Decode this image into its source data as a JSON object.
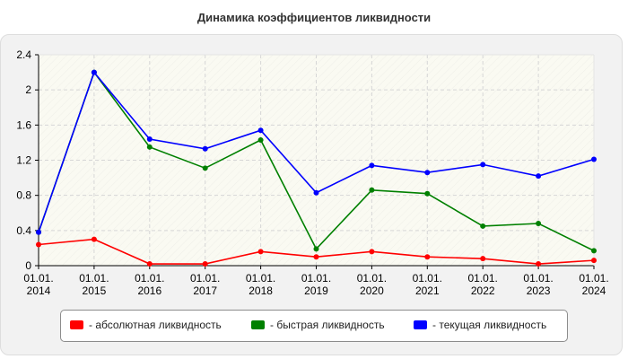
{
  "chart_data": {
    "type": "line",
    "title": "Динамика коэффициентов ликвидности",
    "xlabel": "",
    "ylabel": "",
    "categories": [
      "01.01.\n2014",
      "01.01.\n2015",
      "01.01.\n2016",
      "01.01.\n2017",
      "01.01.\n2018",
      "01.01.\n2019",
      "01.01.\n2020",
      "01.01.\n2021",
      "01.01.\n2022",
      "01.01.\n2023",
      "01.01.\n2024"
    ],
    "ylim": [
      0,
      2.4
    ],
    "yticks": [
      0,
      0.4,
      0.8,
      1.2,
      1.6,
      2,
      2.4
    ],
    "ytick_labels": [
      "0",
      "0.4",
      "0.8",
      "1.2",
      "1.6",
      "2",
      "2.4"
    ],
    "grid": true,
    "legend_position": "bottom",
    "series": [
      {
        "name": "- абсолютная ликвидность",
        "color": "#ff0000",
        "values": [
          0.24,
          0.3,
          0.02,
          0.02,
          0.16,
          0.1,
          0.16,
          0.1,
          0.08,
          0.02,
          0.06
        ]
      },
      {
        "name": "- быстрая ликвидность",
        "color": "#008000",
        "values": [
          0.38,
          2.2,
          1.35,
          1.11,
          1.43,
          0.19,
          0.86,
          0.82,
          0.45,
          0.48,
          0.17
        ]
      },
      {
        "name": "- текущая ликвидность",
        "color": "#0000ff",
        "values": [
          0.38,
          2.2,
          1.44,
          1.33,
          1.54,
          0.83,
          1.14,
          1.06,
          1.15,
          1.02,
          1.21
        ]
      }
    ]
  }
}
